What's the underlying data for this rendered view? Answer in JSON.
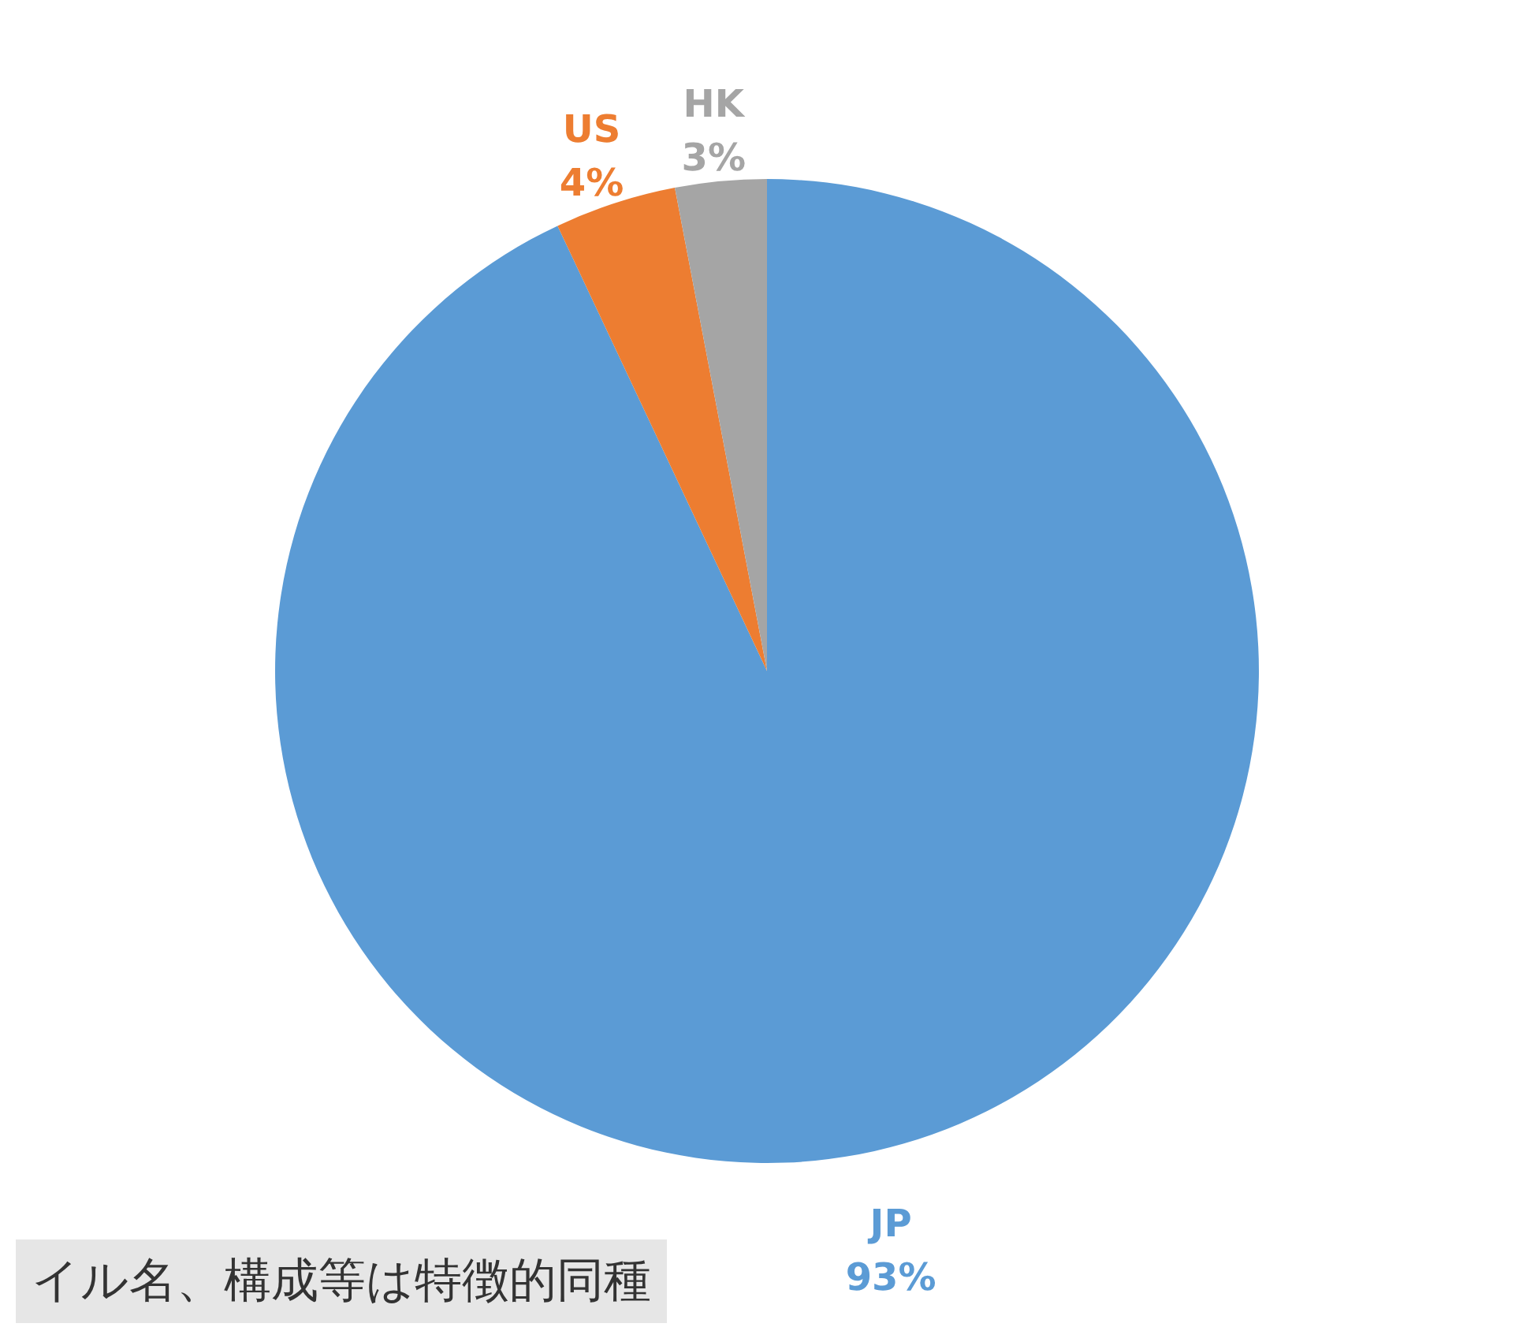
{
  "chart_data": {
    "type": "pie",
    "categories": [
      "JP",
      "US",
      "HK"
    ],
    "values": [
      93,
      4,
      3
    ],
    "colors": [
      "#5b9bd5",
      "#ed7d31",
      "#a5a5a5"
    ],
    "value_labels": [
      "93%",
      "4%",
      "3%"
    ],
    "annotations": [
      "イル名、構成等は特徴的同種"
    ]
  }
}
